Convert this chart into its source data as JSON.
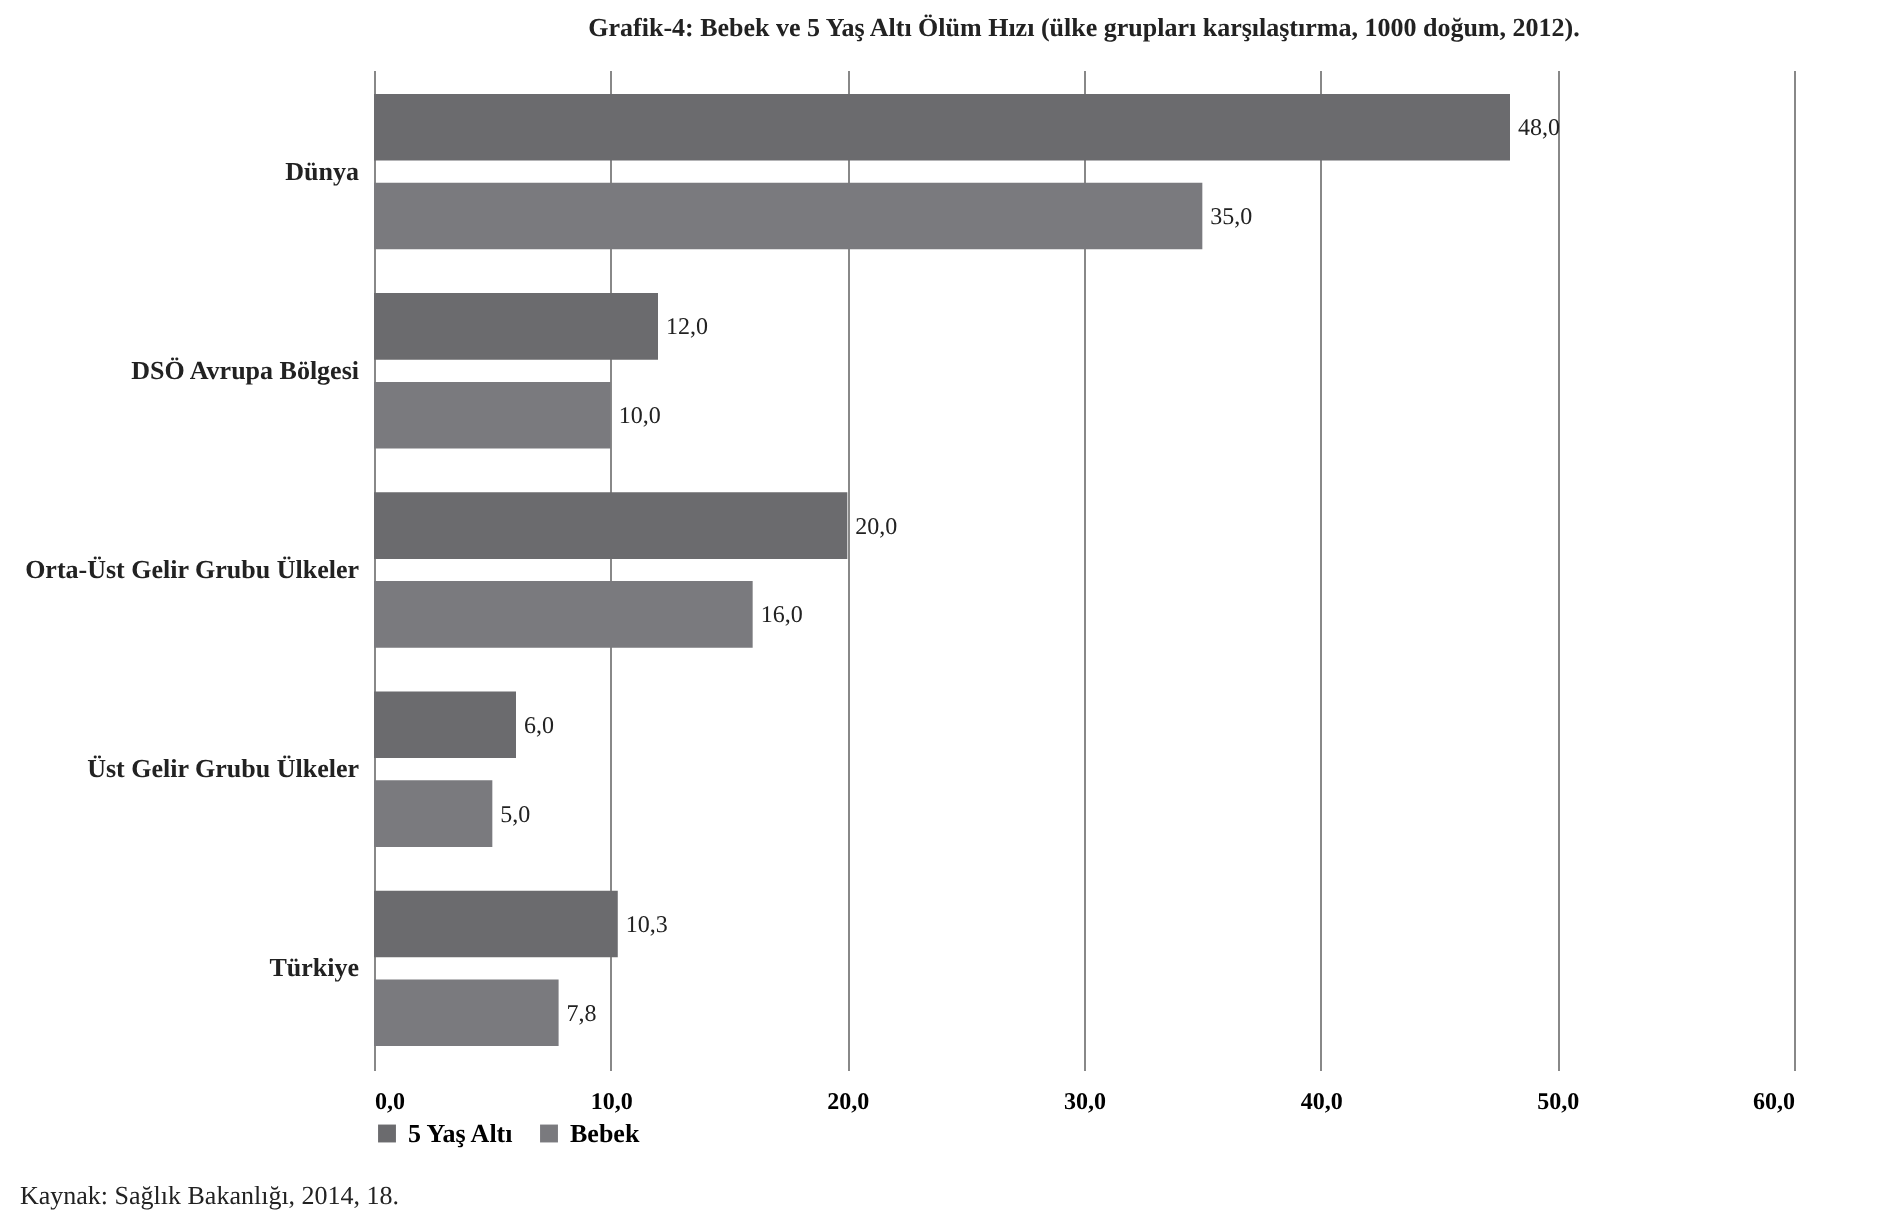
{
  "chart_data": {
    "type": "bar",
    "orientation": "horizontal",
    "title": "Grafik-4: Bebek ve 5 Yaş Altı Ölüm Hızı (ülke grupları karşılaştırma, 1000 doğum, 2012).",
    "categories": [
      "Dünya",
      "DSÖ Avrupa Bölgesi",
      "Orta-Üst  Gelir Grubu Ülkeler",
      "Üst Gelir Grubu Ülkeler",
      "Türkiye"
    ],
    "series": [
      {
        "name": "5 Yaş Altı",
        "color": "#6b6b6e",
        "values": [
          48.0,
          12.0,
          20.0,
          6.0,
          10.3
        ],
        "value_labels": [
          "48,0",
          "12,0",
          "20,0",
          "6,0",
          "10,3"
        ]
      },
      {
        "name": "Bebek",
        "color": "#7a7a7e",
        "values": [
          35.0,
          10.0,
          16.0,
          5.0,
          7.8
        ],
        "value_labels": [
          "35,0",
          "10,0",
          "16,0",
          "5,0",
          "7,8"
        ]
      }
    ],
    "xlim": [
      0,
      60
    ],
    "xticks": [
      {
        "value": 0,
        "label": "0,0"
      },
      {
        "value": 10,
        "label": "10,0"
      },
      {
        "value": 20,
        "label": "20,0"
      },
      {
        "value": 30,
        "label": "30,0"
      },
      {
        "value": 40,
        "label": "40,0"
      },
      {
        "value": 50,
        "label": "50,0"
      },
      {
        "value": 60,
        "label": "60,0"
      }
    ],
    "grid": "x",
    "legend": "bottom",
    "annotations": [
      "Kaynak: Sağlık Bakanlığı, 2014, 18."
    ]
  }
}
